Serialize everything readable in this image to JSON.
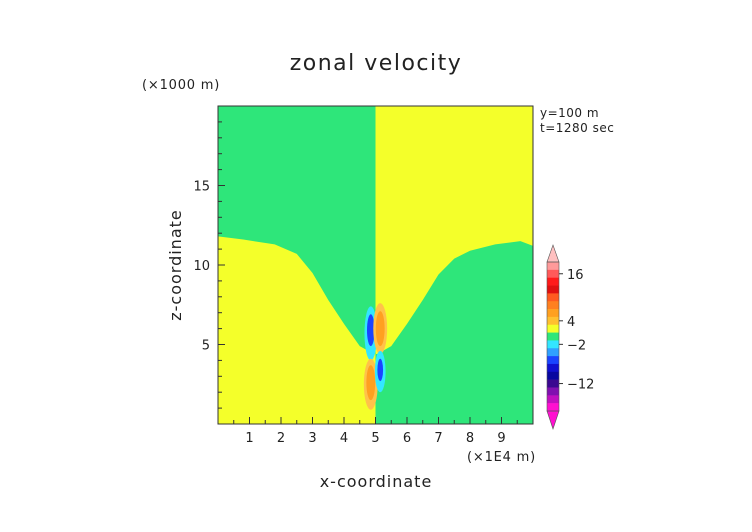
{
  "chart_data": {
    "type": "heatmap",
    "title": "zonal velocity",
    "xlabel": "x-coordinate",
    "ylabel": "z-coordinate",
    "x_scale_label": "(×1E4 m)",
    "y_scale_label": "(×1000 m)",
    "annotations": [
      "y=100 m",
      "t=1280 sec"
    ],
    "xlim": [
      0,
      10
    ],
    "ylim": [
      0,
      20
    ],
    "x_ticks": [
      1,
      2,
      3,
      4,
      5,
      6,
      7,
      8,
      9
    ],
    "y_ticks": [
      5,
      10,
      15
    ],
    "colors": {
      "green": "#2ee67a",
      "yellow": "#f4ff2a",
      "orange": "#ffa020",
      "light_orange": "#ffc24a",
      "cyan": "#33e6ff",
      "blue": "#1a44ff",
      "dark_blue": "#0010a8"
    },
    "regions": {
      "upper_left": "green",
      "upper_right": "yellow",
      "lower_left": "yellow",
      "lower_right": "green",
      "boundary_left": [
        [
          0,
          11.8
        ],
        [
          0.8,
          11.6
        ],
        [
          1.8,
          11.3
        ],
        [
          2.5,
          10.7
        ],
        [
          3.0,
          9.5
        ],
        [
          3.5,
          7.8
        ],
        [
          4.0,
          6.3
        ],
        [
          4.5,
          4.9
        ],
        [
          4.95,
          4.4
        ]
      ],
      "boundary_right": [
        [
          5.05,
          4.4
        ],
        [
          5.5,
          4.9
        ],
        [
          6.0,
          6.3
        ],
        [
          6.5,
          7.8
        ],
        [
          7.0,
          9.4
        ],
        [
          7.5,
          10.4
        ],
        [
          8.0,
          10.9
        ],
        [
          8.8,
          11.3
        ],
        [
          9.6,
          11.5
        ],
        [
          10.0,
          11.2
        ]
      ]
    },
    "cells": [
      {
        "x": 4.85,
        "z": 5.7,
        "rx": 0.2,
        "rz": 1.7,
        "color": "cyan"
      },
      {
        "x": 4.85,
        "z": 5.9,
        "rx": 0.12,
        "rz": 1.0,
        "color": "blue"
      },
      {
        "x": 5.15,
        "z": 6.0,
        "rx": 0.22,
        "rz": 1.6,
        "color": "light_orange"
      },
      {
        "x": 5.15,
        "z": 6.0,
        "rx": 0.14,
        "rz": 1.1,
        "color": "orange"
      },
      {
        "x": 4.85,
        "z": 2.5,
        "rx": 0.22,
        "rz": 1.6,
        "color": "light_orange"
      },
      {
        "x": 4.85,
        "z": 2.6,
        "rx": 0.14,
        "rz": 1.1,
        "color": "orange"
      },
      {
        "x": 5.15,
        "z": 3.3,
        "rx": 0.17,
        "rz": 1.3,
        "color": "cyan"
      },
      {
        "x": 5.15,
        "z": 3.4,
        "rx": 0.09,
        "rz": 0.7,
        "color": "blue"
      }
    ],
    "colorbar": {
      "tick_labels": [
        "16",
        "4",
        "−2",
        "−12"
      ],
      "tick_values": [
        16,
        4,
        -2,
        -12
      ],
      "levels": [
        {
          "v": 18,
          "color": "#ff9a9a"
        },
        {
          "v": 16,
          "color": "#ff5a5a"
        },
        {
          "v": 14,
          "color": "#ff1a1a"
        },
        {
          "v": 12,
          "color": "#e01010"
        },
        {
          "v": 10,
          "color": "#ff5a20"
        },
        {
          "v": 8,
          "color": "#ff8020"
        },
        {
          "v": 6,
          "color": "#ffa020"
        },
        {
          "v": 4,
          "color": "#ffc030"
        },
        {
          "v": 2,
          "color": "#f4ff2a"
        },
        {
          "v": 0,
          "color": "#2ee67a"
        },
        {
          "v": -2,
          "color": "#33e6ff"
        },
        {
          "v": -4,
          "color": "#30a0ff"
        },
        {
          "v": -6,
          "color": "#1a44ff"
        },
        {
          "v": -8,
          "color": "#1010d0"
        },
        {
          "v": -10,
          "color": "#0808a0"
        },
        {
          "v": -12,
          "color": "#3a0890"
        },
        {
          "v": -14,
          "color": "#8010b0"
        },
        {
          "v": -16,
          "color": "#c010c0"
        },
        {
          "v": -18,
          "color": "#ff10d0"
        }
      ],
      "top_arrow_color": "#ffc0c0",
      "bottom_arrow_color": "#ff10d0"
    }
  }
}
